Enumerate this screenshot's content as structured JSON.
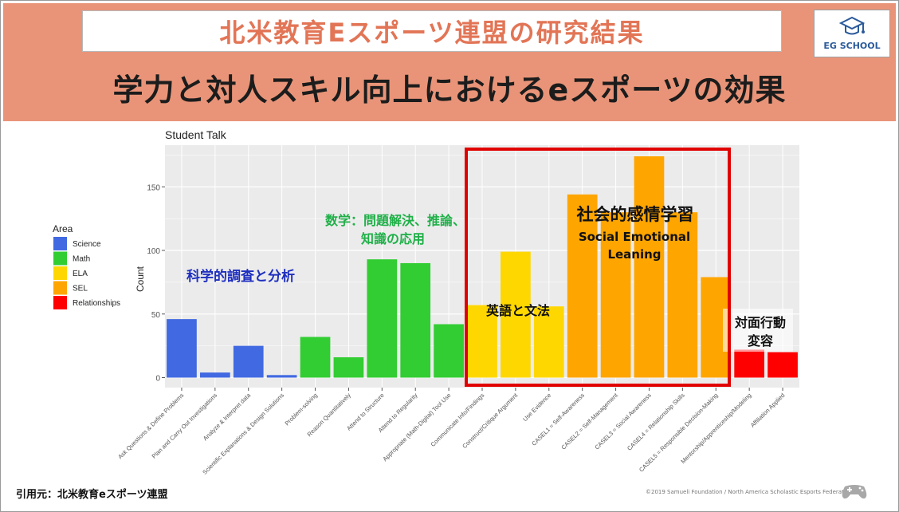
{
  "header": {
    "title": "北米教育Eスポーツ連盟の研究結果",
    "subtitle": "学力と対人スキル向上におけるeスポーツの効果",
    "logo_text": "EG SCHOOL"
  },
  "footer": {
    "citation": "引用元：北米教育eスポーツ連盟",
    "copyright": "©2019 Samueli Foundation / North America Scholastic Esports Federation"
  },
  "colors": {
    "banner": "#e99478",
    "Science": "#4169e1",
    "Math": "#32cd32",
    "ELA": "#ffd700",
    "SEL": "#ffa500",
    "Relationships": "#ff0000",
    "highlight": "#e00000",
    "panel": "#ebebeb"
  },
  "chart_data": {
    "type": "bar",
    "title": "Student Talk",
    "ylabel": "Count",
    "ylim": [
      0,
      180
    ],
    "yticks": [
      0,
      50,
      100,
      150
    ],
    "grid": true,
    "legend": {
      "title": "Area",
      "position": "left",
      "items": [
        "Science",
        "Math",
        "ELA",
        "SEL",
        "Relationships"
      ]
    },
    "categories": [
      "Ask Questions & Define Problems",
      "Plan and Carry Out Investigations",
      "Analyze & Interpret data",
      "Scientific Explanations & Design Solutions",
      "Problem-solving",
      "Reason Quantitatively",
      "Attend to Structure",
      "Attend to Regularity",
      "Appropriate (Math-Digital) Tool Use",
      "Communicate Info/Findings",
      "Construct/Critique Argument",
      "Use Evidence",
      "CASEL1 = Self-Awareness",
      "CASEL2 = Self-Management",
      "CASEL3 = Social Awareness",
      "CASEL4 = Relationship Skills",
      "CASEL5 = Responsible Decision-Making",
      "Mentorship/Apprenticeship/Modeling",
      "Affiliation Applied"
    ],
    "areas": [
      "Science",
      "Science",
      "Science",
      "Science",
      "Math",
      "Math",
      "Math",
      "Math",
      "Math",
      "ELA",
      "ELA",
      "ELA",
      "SEL",
      "SEL",
      "SEL",
      "SEL",
      "SEL",
      "Relationships",
      "Relationships"
    ],
    "values": [
      46,
      4,
      25,
      2,
      32,
      16,
      93,
      90,
      42,
      57,
      99,
      56,
      144,
      130,
      174,
      130,
      79,
      22,
      20
    ],
    "annotations": [
      {
        "text": "科学的調査と分析",
        "color": "#1f2fbf"
      },
      {
        "text": "数学：問題解決、推論、",
        "color": "#1fb048"
      },
      {
        "text": "知識の応用",
        "color": "#1fb048"
      },
      {
        "text": "英語と文法",
        "color": "#111111"
      },
      {
        "text": "社会的感情学習",
        "color": "#111111"
      },
      {
        "text": "Social Emotional",
        "color": "#111111"
      },
      {
        "text": "Leaning",
        "color": "#111111"
      },
      {
        "text": "対面行動",
        "color": "#111111"
      },
      {
        "text": "変容",
        "color": "#111111"
      }
    ]
  }
}
